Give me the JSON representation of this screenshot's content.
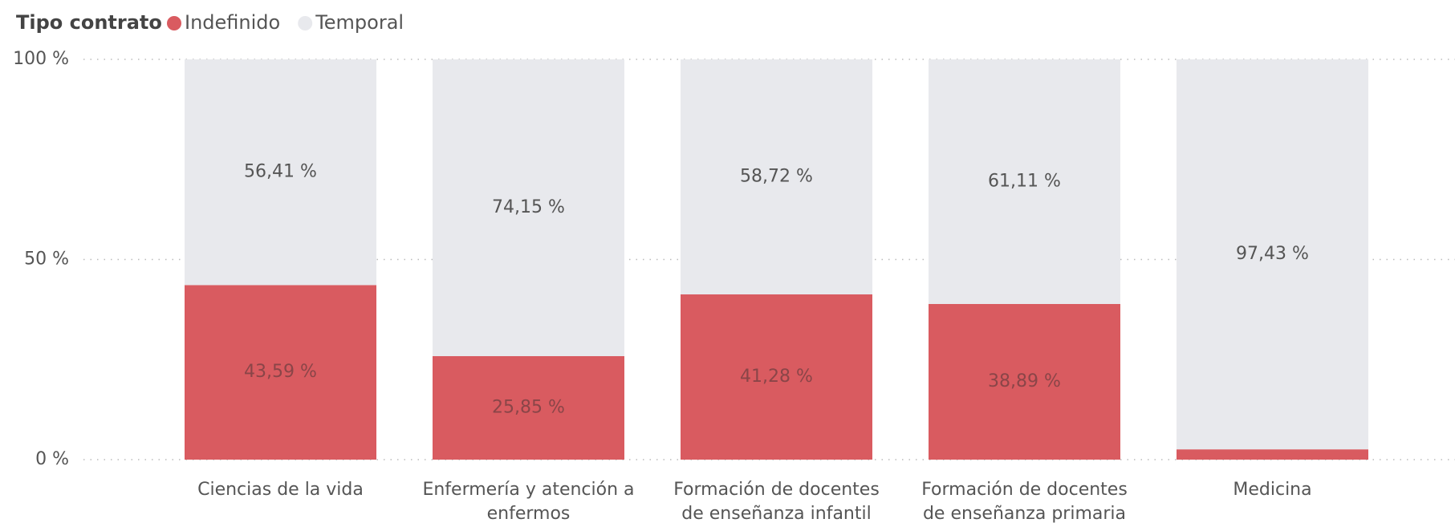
{
  "chart_data": {
    "type": "stacked_bar_100",
    "legend_title": "Tipo contrato",
    "categories": [
      "Ciencias de la vida",
      "Enfermería y atención a enfermos",
      "Formación de docentes de enseñanza infantil",
      "Formación de docentes de enseñanza primaria",
      "Medicina"
    ],
    "series": [
      {
        "name": "Indefinido",
        "color": "#d95b60",
        "values": [
          43.59,
          25.85,
          41.28,
          38.89,
          2.57
        ],
        "value_labels": [
          "43,59 %",
          "25,85 %",
          "41,28 %",
          "38,89 %",
          null
        ]
      },
      {
        "name": "Temporal",
        "color": "#e8e9ed",
        "values": [
          56.41,
          74.15,
          58.72,
          61.11,
          97.43
        ],
        "value_labels": [
          "56,41 %",
          "74,15 %",
          "58,72 %",
          "61,11 %",
          "97,43 %"
        ]
      }
    ],
    "ylim": [
      0,
      100
    ],
    "yticks": [
      {
        "value": 0,
        "label": "0 %"
      },
      {
        "value": 50,
        "label": "50 %"
      },
      {
        "value": 100,
        "label": "100 %"
      }
    ],
    "grid": true,
    "legend_position": "top-left"
  }
}
